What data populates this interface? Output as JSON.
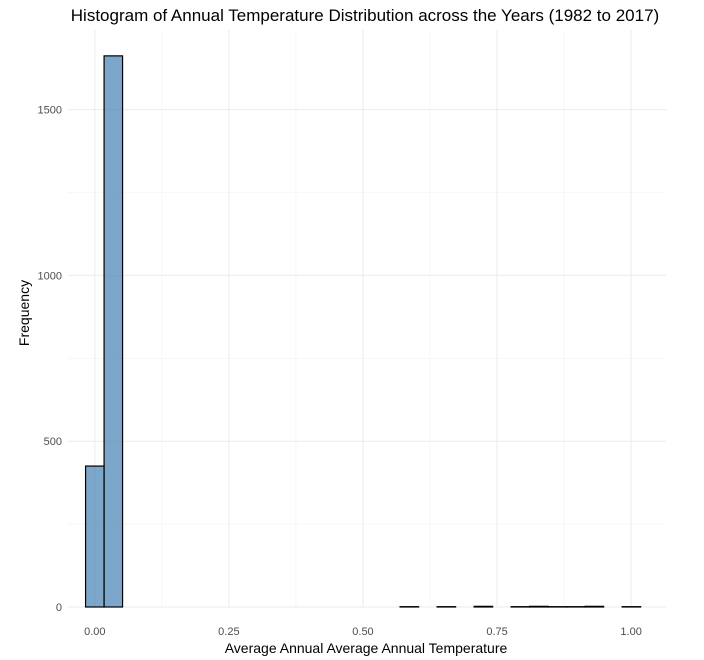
{
  "chart_data": {
    "type": "bar",
    "subtype": "histogram",
    "title": "Histogram of Annual Temperature Distribution across the Years (1982 to 2017)",
    "xlabel": "Average Annual Average Annual Temperature",
    "ylabel": "Frequency",
    "xlim": [
      -0.05,
      1.065
    ],
    "ylim": [
      0,
      1740
    ],
    "x_ticks": [
      0.0,
      0.25,
      0.5,
      0.75,
      1.0
    ],
    "x_tick_labels": [
      "0.00",
      "0.25",
      "0.50",
      "0.75",
      "1.00"
    ],
    "y_ticks": [
      0,
      500,
      1000,
      1500
    ],
    "y_tick_labels": [
      "0",
      "500",
      "1000",
      "1500"
    ],
    "bin_width": 0.0345,
    "bin_centers": [
      0.0,
      0.0345,
      0.069,
      0.1035,
      0.138,
      0.1725,
      0.207,
      0.2415,
      0.276,
      0.3105,
      0.345,
      0.3795,
      0.414,
      0.4485,
      0.483,
      0.5175,
      0.552,
      0.5865,
      0.621,
      0.6555,
      0.69,
      0.7245,
      0.759,
      0.7935,
      0.828,
      0.8625,
      0.897,
      0.9315,
      0.966,
      1.0005
    ],
    "values": [
      425,
      1662,
      0,
      0,
      0,
      0,
      0,
      0,
      0,
      0,
      0,
      0,
      0,
      0,
      0,
      0,
      0,
      1,
      0,
      1,
      0,
      2,
      0,
      1,
      2,
      1,
      1,
      2,
      0,
      1
    ],
    "fill_color": "#4682b4",
    "fill_opacity": 0.7,
    "edge_color": "#000000",
    "grid": true,
    "legend": "none"
  }
}
